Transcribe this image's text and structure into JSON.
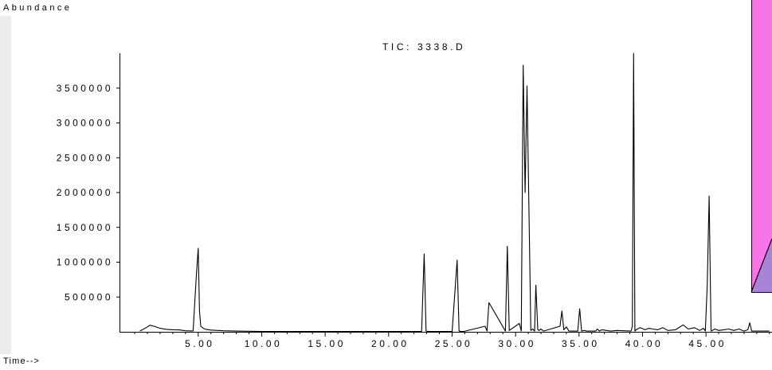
{
  "chart_data": {
    "type": "line",
    "title": "TIC: 3338.D",
    "ylabel": "Abundance",
    "xlabel": "Time-->",
    "xlim": [
      -1.2,
      50.2
    ],
    "ylim": [
      0,
      4000000
    ],
    "y_ticks": [
      500000,
      1000000,
      1500000,
      2000000,
      2500000,
      3000000,
      3500000
    ],
    "y_tick_labels": [
      "500000",
      "1000000",
      "1500000",
      "2000000",
      "2500000",
      "3000000",
      "3500000"
    ],
    "x_ticks": [
      5,
      10,
      15,
      20,
      25,
      30,
      35,
      40,
      45
    ],
    "x_tick_labels": [
      "5.00",
      "10.00",
      "15.00",
      "20.00",
      "25.00",
      "30.00",
      "35.00",
      "40.00",
      "45.00"
    ],
    "grid": false,
    "series": [
      {
        "color": "#000000",
        "x": [
          0.4,
          0.9,
          1.2,
          1.6,
          2.0,
          2.5,
          3.0,
          3.5,
          4.0,
          4.6,
          4.85,
          5.0,
          5.1,
          5.2,
          5.4,
          5.6,
          6.0,
          7.0,
          8.0,
          10.0,
          15.0,
          20.0,
          22.6,
          22.8,
          22.95,
          23.1,
          23.3,
          25.0,
          25.4,
          25.55,
          25.7,
          25.9,
          27.6,
          27.75,
          27.9,
          29.2,
          29.35,
          29.5,
          30.3,
          30.45,
          30.6,
          30.75,
          30.9,
          31.2,
          31.35,
          31.5,
          31.6,
          31.75,
          31.85,
          32.0,
          32.2,
          33.5,
          33.65,
          33.8,
          34.0,
          34.2,
          34.9,
          35.05,
          35.2,
          35.4,
          35.6,
          36.3,
          36.45,
          36.6,
          36.8,
          37.5,
          38.0,
          39.1,
          39.2,
          39.3,
          39.4,
          39.5,
          39.6,
          39.8,
          40.2,
          40.5,
          40.8,
          41.2,
          41.6,
          42.0,
          42.6,
          43.2,
          43.6,
          44.1,
          44.5,
          44.8,
          44.95,
          45.1,
          45.25,
          45.4,
          45.7,
          46.0,
          46.4,
          46.8,
          47.2,
          47.6,
          48.0,
          48.3,
          48.45,
          48.6,
          49.2,
          50.0
        ],
        "y": [
          10000,
          60000,
          95000,
          75000,
          50000,
          35000,
          30000,
          28000,
          15000,
          12000,
          800000,
          1200000,
          300000,
          80000,
          50000,
          35000,
          25000,
          15000,
          10000,
          5000,
          4000,
          4000,
          6000,
          1120000,
          10000,
          5000,
          4000,
          5000,
          1030000,
          10000,
          5000,
          4000,
          80000,
          10000,
          420000,
          10000,
          1230000,
          20000,
          120000,
          10000,
          3830000,
          2000000,
          3530000,
          20000,
          40000,
          10000,
          670000,
          30000,
          20000,
          40000,
          10000,
          80000,
          300000,
          30000,
          70000,
          10000,
          10000,
          330000,
          10000,
          20000,
          10000,
          10000,
          40000,
          10000,
          30000,
          10000,
          20000,
          10000,
          80000,
          4000000,
          10000,
          30000,
          40000,
          60000,
          30000,
          50000,
          40000,
          30000,
          60000,
          20000,
          30000,
          100000,
          40000,
          60000,
          20000,
          50000,
          10000,
          660000,
          1950000,
          10000,
          40000,
          20000,
          30000,
          40000,
          20000,
          40000,
          10000,
          30000,
          130000,
          10000,
          10000,
          10000
        ]
      }
    ]
  },
  "overlay": {
    "top_color": "#f576e4",
    "bottom_color": "#a884d8"
  }
}
